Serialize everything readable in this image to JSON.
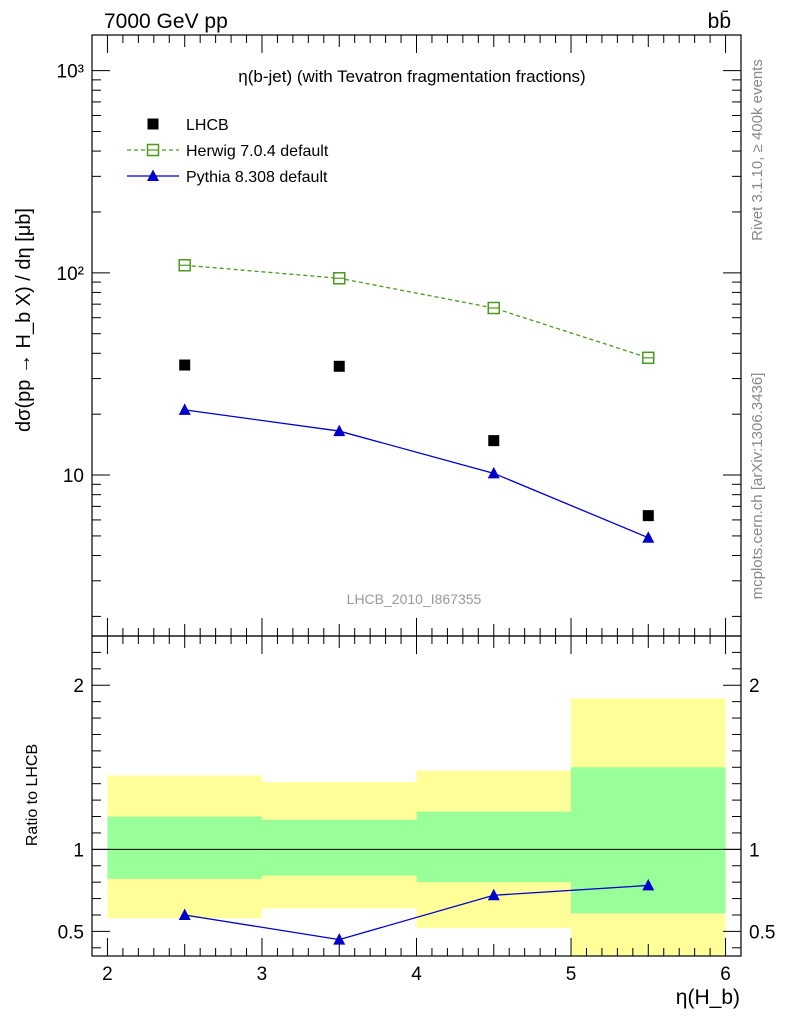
{
  "header": {
    "energy_label": "7000 GeV pp",
    "process_label": "bb̄"
  },
  "side_labels": {
    "rivet": "Rivet 3.1.10, ≥ 400k events",
    "mcplots": "mcplots.cern.ch [arXiv:1306.3436]"
  },
  "chart_data": [
    {
      "type": "scatter",
      "panel": "main",
      "title": "η(b-jet) (with Tevatron fragmentation fractions)",
      "watermark": "LHCB_2010_I867355",
      "ylabel": "dσ(pp → H_b X) / dη [μb]",
      "yscale": "log",
      "ylim": [
        1.6,
        1500
      ],
      "xlim": [
        1.9,
        6.1
      ],
      "y_tick_labels": [
        "10",
        "10²",
        "10³"
      ],
      "legend_position": "top-left",
      "x": [
        2.5,
        3.5,
        4.5,
        5.5
      ],
      "series": [
        {
          "name": "LHCB",
          "style": "marker",
          "marker": "square-filled",
          "color": "#000000",
          "values": [
            35,
            34.5,
            14.8,
            6.3
          ]
        },
        {
          "name": "Herwig 7.0.4 default",
          "style": "dashed-line",
          "marker": "square-open",
          "color": "#4a9a1e",
          "values": [
            109,
            94,
            67,
            38
          ]
        },
        {
          "name": "Pythia 8.308 default",
          "style": "line",
          "marker": "triangle-filled",
          "color": "#0000cc",
          "values": [
            21,
            16.5,
            10.2,
            4.9
          ]
        }
      ]
    },
    {
      "type": "line",
      "panel": "ratio",
      "ylabel": "Ratio to LHCB",
      "xlabel": "η(H_b)",
      "ylim": [
        0.35,
        2.3
      ],
      "xlim": [
        1.9,
        6.1
      ],
      "y_tick_labels": [
        "0.5",
        "1",
        "2"
      ],
      "x_tick_labels": [
        "2",
        "3",
        "4",
        "5",
        "6"
      ],
      "reference_line": 1,
      "bands": [
        {
          "x_low": 2,
          "x_high": 3,
          "green_low": 0.82,
          "green_high": 1.2,
          "yellow_low": 0.58,
          "yellow_high": 1.45
        },
        {
          "x_low": 3,
          "x_high": 4,
          "green_low": 0.84,
          "green_high": 1.18,
          "yellow_low": 0.64,
          "yellow_high": 1.41
        },
        {
          "x_low": 4,
          "x_high": 5,
          "green_low": 0.8,
          "green_high": 1.23,
          "yellow_low": 0.52,
          "yellow_high": 1.48
        },
        {
          "x_low": 5,
          "x_high": 6,
          "green_low": 0.61,
          "green_high": 1.5,
          "yellow_low": 0.35,
          "yellow_high": 1.92
        }
      ],
      "x": [
        2.5,
        3.5,
        4.5,
        5.5
      ],
      "series": [
        {
          "name": "Pythia 8.308 default",
          "color": "#0000cc",
          "marker": "triangle-filled",
          "values": [
            0.6,
            0.45,
            0.72,
            0.78
          ]
        }
      ]
    }
  ]
}
